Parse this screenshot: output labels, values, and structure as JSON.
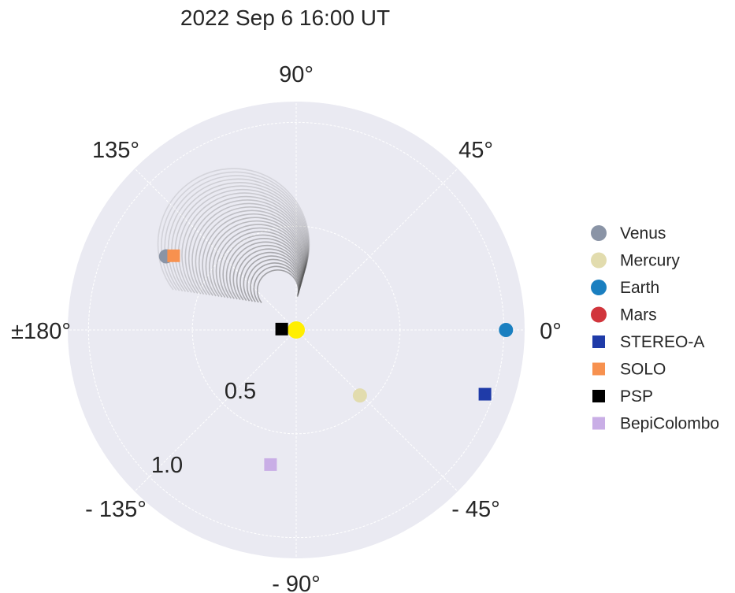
{
  "chart_data": {
    "type": "polar-scatter",
    "title": "2022 Sep 6 16:00 UT",
    "angle_ticks": [
      {
        "deg": 0,
        "label": "0°"
      },
      {
        "deg": 45,
        "label": "45°"
      },
      {
        "deg": 90,
        "label": "90°"
      },
      {
        "deg": 135,
        "label": "135°"
      },
      {
        "deg": 180,
        "label": "±180°"
      },
      {
        "deg": -135,
        "label": "- 135°"
      },
      {
        "deg": -90,
        "label": "- 90°"
      },
      {
        "deg": -45,
        "label": "- 45°"
      }
    ],
    "radial_ticks": [
      {
        "r": 0.5,
        "label": "0.5"
      },
      {
        "r": 1.0,
        "label": "1.0"
      }
    ],
    "rmax": 1.1,
    "grid": true,
    "legend_position": "right",
    "sun": {
      "color": "#ffee00"
    },
    "bodies": [
      {
        "name": "Venus",
        "marker": "circle",
        "color": "#8a94a6",
        "lon": 150.5,
        "r": 0.72
      },
      {
        "name": "Mercury",
        "marker": "circle",
        "color": "#e2dcae",
        "lon": -45.8,
        "r": 0.44
      },
      {
        "name": "Earth",
        "marker": "circle",
        "color": "#1a7fc0",
        "lon": 0.0,
        "r": 1.01
      },
      {
        "name": "Mars",
        "marker": "circle",
        "color": "#d1353c",
        "lon": null,
        "r": null
      },
      {
        "name": "STEREO-A",
        "marker": "square",
        "color": "#1f3ba8",
        "lon": -18.8,
        "r": 0.96
      },
      {
        "name": "SOLO",
        "marker": "square",
        "color": "#f7914f",
        "lon": 148.8,
        "r": 0.69
      },
      {
        "name": "PSP",
        "marker": "square",
        "color": "#000000",
        "lon": 176.5,
        "r": 0.07
      },
      {
        "name": "BepiColombo",
        "marker": "square",
        "color": "#c9aee6",
        "lon": -100.8,
        "r": 0.66
      }
    ]
  }
}
